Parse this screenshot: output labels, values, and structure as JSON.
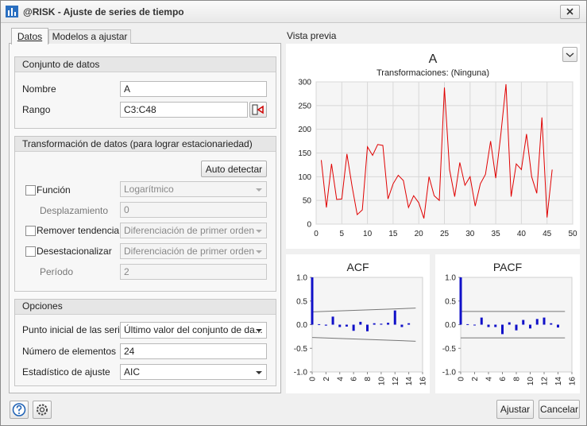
{
  "dialog": {
    "title": "@RISK - Ajuste de series de tiempo",
    "tabs": [
      "Datos",
      "Modelos a ajustar"
    ],
    "preview_label": "Vista previa",
    "data_set": {
      "title": "Conjunto de datos",
      "name_label": "Nombre",
      "name_value": "A",
      "range_label": "Rango",
      "range_value": "C3:C48"
    },
    "transform": {
      "title": "Transformación de datos (para lograr estacionariedad)",
      "auto_detect": "Auto detectar",
      "function_label": "Función",
      "function_value": "Logarítmico",
      "shift_label": "Desplazamiento",
      "shift_value": "0",
      "detrend_label": "Remover tendencia",
      "detrend_value": "Diferenciación de primer orden",
      "deseasonalize_label": "Desestacionalizar",
      "deseasonalize_value": "Diferenciación de primer orden",
      "period_label": "Período",
      "period_value": "2"
    },
    "options": {
      "title": "Opciones",
      "start_label": "Punto inicial de las series",
      "start_value": "Último valor del conjunto de da...",
      "count_label": "Número de elementos",
      "count_value": "24",
      "statistic_label": "Estadístico de ajuste",
      "statistic_value": "AIC"
    },
    "buttons": {
      "fit": "Ajustar",
      "cancel": "Cancelar"
    }
  },
  "chart_data": [
    {
      "type": "line",
      "title": "A",
      "subtitle": "Transformaciones: (Ninguna)",
      "color": "#e00000",
      "grid": true,
      "x": [
        1,
        2,
        3,
        4,
        5,
        6,
        7,
        8,
        9,
        10,
        11,
        12,
        13,
        14,
        15,
        16,
        17,
        18,
        19,
        20,
        21,
        22,
        23,
        24,
        25,
        26,
        27,
        28,
        29,
        30,
        31,
        32,
        33,
        34,
        35,
        36,
        37,
        38,
        39,
        40,
        41,
        42,
        43,
        44,
        45,
        46
      ],
      "values": [
        135,
        35,
        127,
        52,
        53,
        148,
        80,
        20,
        30,
        163,
        145,
        168,
        166,
        53,
        85,
        103,
        92,
        35,
        60,
        45,
        12,
        100,
        60,
        50,
        288,
        115,
        58,
        130,
        82,
        100,
        38,
        85,
        105,
        175,
        97,
        190,
        295,
        58,
        127,
        115,
        190,
        100,
        65,
        225,
        14,
        115
      ],
      "xlim": [
        0,
        50
      ],
      "xticks": [
        0,
        5,
        10,
        15,
        20,
        25,
        30,
        35,
        40,
        45,
        50
      ],
      "ylim": [
        0,
        300
      ],
      "yticks": [
        0,
        50,
        100,
        150,
        200,
        250,
        300
      ]
    },
    {
      "type": "bar",
      "title": "ACF",
      "color": "#1010c8",
      "grid": false,
      "rotate_xticks": true,
      "x": [
        0,
        1,
        2,
        3,
        4,
        5,
        6,
        7,
        8,
        9,
        10,
        11,
        12,
        13,
        14
      ],
      "values": [
        1,
        0.01,
        -0.02,
        0.17,
        -0.05,
        -0.04,
        -0.13,
        0.06,
        -0.14,
        0.03,
        0.02,
        0.04,
        0.3,
        -0.05,
        0.03
      ],
      "upper_bound": {
        "x": [
          0,
          15
        ],
        "values": [
          0.27,
          0.35
        ]
      },
      "lower_bound": {
        "x": [
          0,
          15
        ],
        "values": [
          -0.27,
          -0.35
        ]
      },
      "xlim": [
        0,
        16
      ],
      "xticks": [
        0,
        2,
        4,
        6,
        8,
        10,
        12,
        14,
        16
      ],
      "ylim": [
        -1,
        1
      ],
      "yticks": [
        {
          "value": -1,
          "label": "-1.0"
        },
        {
          "value": -0.5,
          "label": "-0.5"
        },
        {
          "value": 0,
          "label": "0.0"
        },
        {
          "value": 0.5,
          "label": "0.5"
        },
        {
          "value": 1,
          "label": "1.0"
        }
      ]
    },
    {
      "type": "bar",
      "title": "PACF",
      "color": "#1010c8",
      "grid": false,
      "rotate_xticks": true,
      "x": [
        0,
        1,
        2,
        3,
        4,
        5,
        6,
        7,
        8,
        9,
        10,
        11,
        12,
        13,
        14
      ],
      "values": [
        1,
        0.01,
        -0.01,
        0.15,
        -0.05,
        -0.05,
        -0.2,
        0.05,
        -0.12,
        0.1,
        -0.08,
        0.12,
        0.15,
        0.03,
        -0.06
      ],
      "upper_bound": {
        "x": [
          0,
          15
        ],
        "values": [
          0.28,
          0.28
        ]
      },
      "lower_bound": {
        "x": [
          0,
          15
        ],
        "values": [
          -0.28,
          -0.28
        ]
      },
      "xlim": [
        0,
        16
      ],
      "xticks": [
        0,
        2,
        4,
        6,
        8,
        10,
        12,
        14,
        16
      ],
      "ylim": [
        -1,
        1
      ],
      "yticks": [
        {
          "value": -1,
          "label": "-1.0"
        },
        {
          "value": -0.5,
          "label": "-0.5"
        },
        {
          "value": 0,
          "label": "0.0"
        },
        {
          "value": 0.5,
          "label": "0.5"
        },
        {
          "value": 1,
          "label": "1.0"
        }
      ]
    }
  ]
}
